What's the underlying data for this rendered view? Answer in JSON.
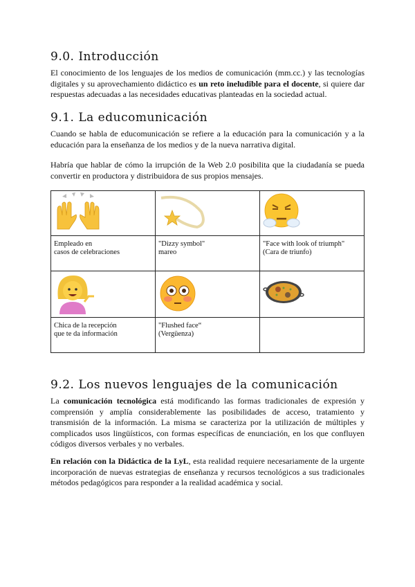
{
  "sections": [
    {
      "heading": "9.0. Introducción",
      "paragraphs": [
        {
          "before": "El conocimiento de los lenguajes de los medios de comunicación (mm.cc.) y las tecnologías digitales y su aprovechamiento didáctico es ",
          "bold": "un reto ineludible para el docente",
          "after": ", si quiere dar respuestas adecuadas a las necesidades educativas planteadas en la sociedad actual."
        }
      ]
    },
    {
      "heading": "9.1. La educomunicación",
      "paragraphs": [
        {
          "text": "Cuando se habla de educomunicación se refiere a la educación para la comunicación y a la educación para la enseñanza de los medios y de la nueva narrativa digital."
        },
        {
          "text": "Habría que hablar de cómo la irrupción de la Web 2.0 posibilita que la ciudadanía se pueda convertir en productora y distribuidora de sus propios mensajes."
        }
      ]
    },
    {
      "heading": "9.2. Los nuevos lenguajes de la comunicación",
      "paragraphs": [
        {
          "before": "La ",
          "bold": "comunicación tecnológica",
          "after": " está modificando las formas tradicionales de expresión y comprensión y amplía considerablemente las posibilidades de acceso, tratamiento y transmisión de la información. La misma se caracteriza por la utilización de múltiples y complicados usos lingüísticos, con formas específicas de enunciación, en los que confluyen códigos diversos verbales y no verbales."
        },
        {
          "before": "",
          "bold": "En relación con la Didáctica de la LyL",
          "after": ", esta realidad requiere necesariamente de la urgente incorporación de nuevas estrategias de enseñanza y recursos tecnológicos a sus tradicionales métodos pedagógicos para responder a la realidad académica y social."
        }
      ]
    }
  ],
  "emoji_table": [
    {
      "icon": "raised-hands",
      "caption": [
        "Empleado en",
        "casos de celebraciones"
      ]
    },
    {
      "icon": "dizzy-symbol",
      "caption": [
        "\"Dizzy symbol\"",
        "mareo"
      ]
    },
    {
      "icon": "face-with-look-of-triumph",
      "caption": [
        "\"Face with look of triumph\"",
        "(Cara de triunfo)"
      ]
    },
    {
      "icon": "information-desk-person",
      "caption": [
        "Chica de la recepción",
        "que te da información"
      ]
    },
    {
      "icon": "flushed-face",
      "caption": [
        "\"Flushed face“",
        "(Vergüenza)"
      ]
    },
    {
      "icon": "paella",
      "caption": [
        "",
        ""
      ]
    }
  ]
}
